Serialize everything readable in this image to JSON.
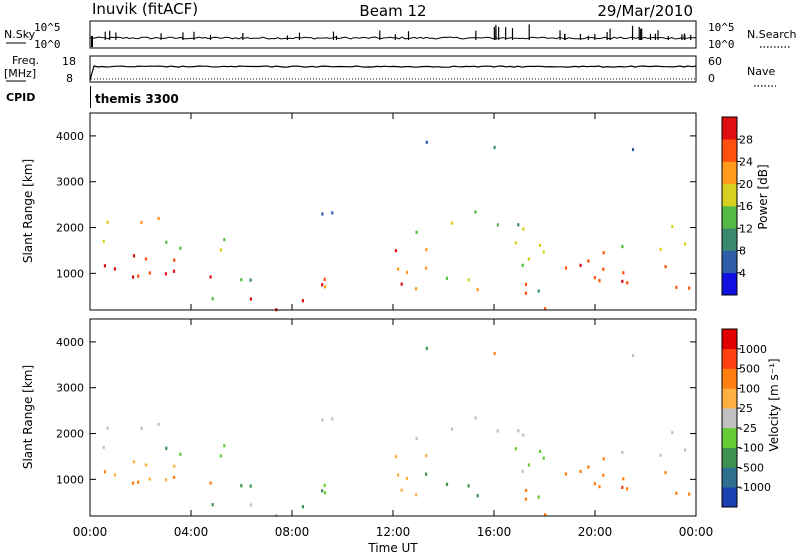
{
  "header": {
    "station": "Inuvik (fitACF)",
    "beam": "Beam 12",
    "date": "29/Mar/2010"
  },
  "top_panels": {
    "nsky_label": "N.Sky",
    "nsearch_label": "N.Search",
    "noise_tick_top": "10^5",
    "noise_tick_bottom": "10^0",
    "freq_label": "Freq.",
    "freq_unit": "[MHz]",
    "freq_tick_top": "18",
    "freq_tick_bottom": "8",
    "nave_label": "Nave",
    "nave_tick_top": "60",
    "nave_tick_bottom": "0",
    "cpid_label": "CPID",
    "cpid_value": "themis 3300"
  },
  "chart_data": [
    {
      "type": "heatmap",
      "ylabel": "Slant Range [km]",
      "yticks": [
        "1000",
        "2000",
        "3000",
        "4000"
      ],
      "ylim": [
        200,
        4500
      ],
      "xlim": [
        0,
        24
      ],
      "colorbar": {
        "label": "Power [dB]",
        "ticks": [
          "4",
          "8",
          "12",
          "16",
          "20",
          "24",
          "28"
        ],
        "colors": [
          "#1010e0",
          "#2e5fa8",
          "#3b8a70",
          "#55bb45",
          "#d8d020",
          "#ff9a1a",
          "#ff5010",
          "#e01010"
        ]
      }
    },
    {
      "type": "heatmap",
      "ylabel": "Slant Range [km]",
      "yticks": [
        "1000",
        "2000",
        "3000",
        "4000"
      ],
      "ylim": [
        200,
        4500
      ],
      "xlim": [
        0,
        24
      ],
      "colorbar": {
        "label": "Velocity [m s⁻¹]",
        "ticks": [
          "1000",
          "500",
          "100",
          "25",
          "-25",
          "-100",
          "-500",
          "-1000"
        ],
        "colors": [
          "#1a3fb0",
          "#2e6e8e",
          "#3d9050",
          "#66cc33",
          "#c0c0c0",
          "#ffb040",
          "#ff8010",
          "#ff4010",
          "#e00000"
        ]
      }
    }
  ],
  "xaxis": {
    "ticks": [
      "00:00",
      "04:00",
      "08:00",
      "12:00",
      "16:00",
      "20:00",
      "00:00"
    ],
    "label": "Time UT"
  }
}
